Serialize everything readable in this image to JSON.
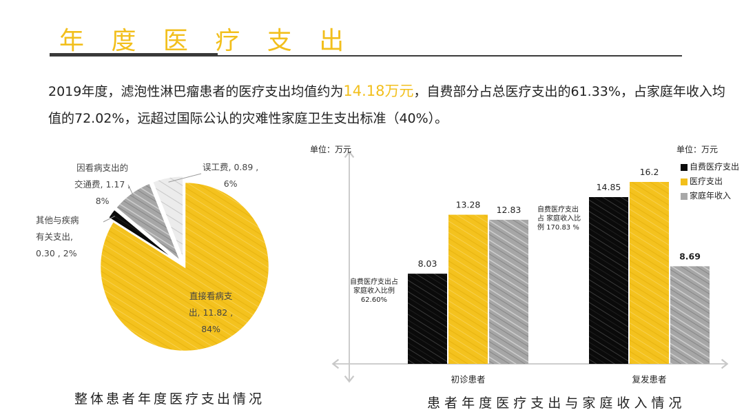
{
  "page_title": "年 度 医 疗 支 出",
  "intro": {
    "part1": "2019年度，滤泡性淋巴瘤患者的医疗支出均值约为",
    "highlight": "14.18万元",
    "part2": "，自费部分占总医疗支出的61.33%，占家庭年收入均值的72.02%，远超过国际公认的灾难性家庭卫生支出标准（40%）。"
  },
  "colors": {
    "accent": "#f2bf1c",
    "black": "#0a0a0a",
    "gray": "#a8a8a8",
    "light_gray": "#e6e6e6",
    "rule": "#3a3a3a"
  },
  "chart_data": [
    {
      "type": "pie",
      "title": "整体患者年度医疗支出情况",
      "slices": [
        {
          "label_line1": "直接看病支",
          "label_line2": "出, 11.82 ,",
          "label_line3": "84%",
          "value": 11.82,
          "percent": 84,
          "color": "#f2bf1c"
        },
        {
          "label_line1": "其他与疾病",
          "label_line2": "有关支出,",
          "label_line3": "0.30 , 2%",
          "value": 0.3,
          "percent": 2,
          "color": "#0a0a0a"
        },
        {
          "label_line1": "因看病支出的",
          "label_line2": "交通费, 1.17 ,",
          "label_line3": "8%",
          "value": 1.17,
          "percent": 8,
          "color": "#a8a8a8"
        },
        {
          "label_line1": "误工费, 0.89 ,",
          "label_line2": "6%",
          "value": 0.89,
          "percent": 6,
          "color": "#e6e6e6"
        }
      ]
    },
    {
      "type": "bar",
      "title": "患 者 年 度 医 疗 支 出 与 家 庭 收 入 情 况",
      "unit_left": "单位：万元",
      "unit_right": "单位：万元",
      "categories": [
        "初诊患者",
        "复发患者"
      ],
      "series": [
        {
          "name": "自费医疗支出",
          "values": [
            8.03,
            14.85
          ],
          "color": "#0a0a0a"
        },
        {
          "name": "医疗支出",
          "values": [
            13.28,
            16.2
          ],
          "color": "#f2bf1c"
        },
        {
          "name": "家庭年收入",
          "values": [
            12.83,
            8.69
          ],
          "color": "#a8a8a8"
        }
      ],
      "value_labels": [
        [
          "8.03",
          "13.28",
          "12.83"
        ],
        [
          "14.85",
          "16.2",
          "8.69"
        ]
      ],
      "ylim": [
        0,
        16.2
      ],
      "annotations": [
        {
          "line1": "自费医疗支出占",
          "line2": "家庭收入比例",
          "line3": "62.60%"
        },
        {
          "line1": "自费医疗支出",
          "line2": "占 家庭收入比",
          "line3": "例 170.83 %"
        }
      ],
      "legend_position": "top-right"
    }
  ]
}
